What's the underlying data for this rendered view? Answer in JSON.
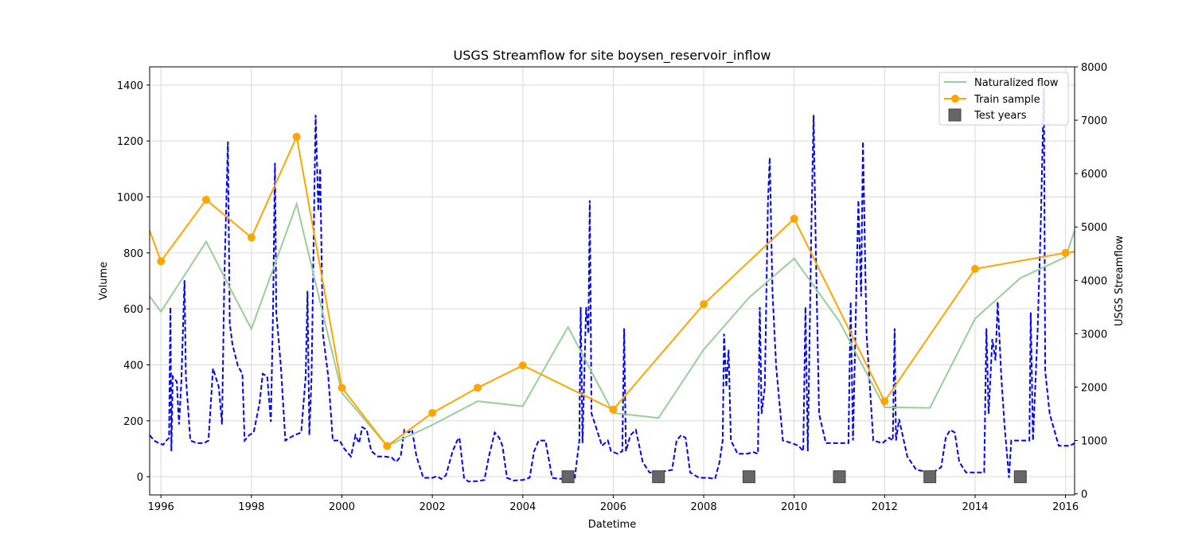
{
  "chart_data": {
    "type": "line",
    "title": "USGS Streamflow for site boysen_reservoir_inflow",
    "xlabel": "Datetime",
    "ylabel_left": "Volume",
    "ylabel_right": "USGS Streamflow",
    "xlim": [
      1995.75,
      2016.2
    ],
    "ylim_left": [
      -65,
      1465
    ],
    "ylim_right": [
      -20,
      8000
    ],
    "x_ticks": [
      1996,
      1998,
      2000,
      2002,
      2004,
      2006,
      2008,
      2010,
      2012,
      2014,
      2016
    ],
    "y_ticks_left": [
      0,
      200,
      400,
      600,
      800,
      1000,
      1200,
      1400
    ],
    "y_ticks_right": [
      0,
      1000,
      2000,
      3000,
      4000,
      5000,
      6000,
      7000,
      8000
    ],
    "grid": true,
    "legend_position": "top-right",
    "legend": {
      "naturalized_label": "Naturalized flow",
      "train_label": "Train sample",
      "test_label": "Test years"
    },
    "colors": {
      "naturalized": "#9acd9a",
      "train": "#ffa500",
      "test": "#666666",
      "usgs": "#0000ff"
    },
    "series": [
      {
        "name": "Naturalized flow",
        "axis": "left",
        "x": [
          1995.75,
          1996,
          1997,
          1998,
          1999,
          2000,
          2001,
          2002,
          2003,
          2004,
          2005,
          2006,
          2007,
          2008,
          2009,
          2010,
          2011,
          2012,
          2013,
          2014,
          2015,
          2016,
          2016.2
        ],
        "y": [
          645,
          590,
          840,
          528,
          975,
          300,
          110,
          185,
          270,
          252,
          535,
          228,
          210,
          455,
          640,
          780,
          555,
          248,
          246,
          565,
          710,
          785,
          880
        ]
      },
      {
        "name": "Train sample",
        "axis": "left",
        "x": [
          1995.75,
          1996,
          1997,
          1998,
          1999,
          2000,
          2001,
          2002,
          2003,
          2004,
          2006,
          2008,
          2010,
          2012,
          2014,
          2016,
          2016.2
        ],
        "y": [
          880,
          770,
          990,
          855,
          1215,
          318,
          110,
          228,
          318,
          398,
          240,
          617,
          922,
          270,
          743,
          800,
          805
        ],
        "markers": [
          [
            1996,
            770
          ],
          [
            1997,
            990
          ],
          [
            1998,
            855
          ],
          [
            1999,
            1215
          ],
          [
            2000,
            318
          ],
          [
            2001,
            110
          ],
          [
            2002,
            228
          ],
          [
            2003,
            318
          ],
          [
            2004,
            398
          ],
          [
            2006,
            240
          ],
          [
            2008,
            617
          ],
          [
            2010,
            922
          ],
          [
            2012,
            270
          ],
          [
            2014,
            743
          ],
          [
            2016,
            800
          ]
        ]
      },
      {
        "name": "Test years",
        "axis": "left",
        "x": [
          2005,
          2007,
          2009,
          2011,
          2013,
          2015
        ],
        "y": [
          0,
          0,
          0,
          0,
          0,
          0
        ]
      },
      {
        "name": "USGS Streamflow",
        "axis": "right",
        "style": "dashed",
        "points": [
          [
            1995.75,
            1100
          ],
          [
            1995.85,
            1000
          ],
          [
            1995.95,
            950
          ],
          [
            1996.05,
            920
          ],
          [
            1996.12,
            1000
          ],
          [
            1996.18,
            1050
          ],
          [
            1996.21,
            3500
          ],
          [
            1996.23,
            800
          ],
          [
            1996.26,
            2200
          ],
          [
            1996.35,
            2100
          ],
          [
            1996.4,
            1300
          ],
          [
            1996.45,
            2100
          ],
          [
            1996.52,
            4000
          ],
          [
            1996.55,
            2200
          ],
          [
            1996.65,
            1000
          ],
          [
            1996.8,
            950
          ],
          [
            1996.95,
            950
          ],
          [
            1997.05,
            1000
          ],
          [
            1997.15,
            2350
          ],
          [
            1997.28,
            2000
          ],
          [
            1997.35,
            1300
          ],
          [
            1997.4,
            4000
          ],
          [
            1997.48,
            6600
          ],
          [
            1997.52,
            3200
          ],
          [
            1997.58,
            2800
          ],
          [
            1997.7,
            2400
          ],
          [
            1997.8,
            2250
          ],
          [
            1997.85,
            1000
          ],
          [
            1997.95,
            1100
          ],
          [
            1998.05,
            1150
          ],
          [
            1998.18,
            1700
          ],
          [
            1998.25,
            2250
          ],
          [
            1998.35,
            2200
          ],
          [
            1998.43,
            1350
          ],
          [
            1998.48,
            3500
          ],
          [
            1998.52,
            6200
          ],
          [
            1998.55,
            3400
          ],
          [
            1998.65,
            2400
          ],
          [
            1998.75,
            1000
          ],
          [
            1998.85,
            1050
          ],
          [
            1998.95,
            1100
          ],
          [
            1999.1,
            1150
          ],
          [
            1999.2,
            2200
          ],
          [
            1999.24,
            3800
          ],
          [
            1999.28,
            1100
          ],
          [
            1999.33,
            2200
          ],
          [
            1999.38,
            5000
          ],
          [
            1999.42,
            7100
          ],
          [
            1999.48,
            5300
          ],
          [
            1999.52,
            6100
          ],
          [
            1999.58,
            3000
          ],
          [
            1999.7,
            2200
          ],
          [
            1999.8,
            1000
          ],
          [
            1999.95,
            1000
          ],
          [
            2000.05,
            850
          ],
          [
            2000.2,
            700
          ],
          [
            2000.3,
            1100
          ],
          [
            2000.38,
            950
          ],
          [
            2000.45,
            1250
          ],
          [
            2000.55,
            1200
          ],
          [
            2000.65,
            800
          ],
          [
            2000.8,
            700
          ],
          [
            2000.95,
            700
          ],
          [
            2001.1,
            680
          ],
          [
            2001.2,
            600
          ],
          [
            2001.3,
            700
          ],
          [
            2001.38,
            1200
          ],
          [
            2001.48,
            1150
          ],
          [
            2001.55,
            1200
          ],
          [
            2001.65,
            700
          ],
          [
            2001.8,
            300
          ],
          [
            2002.0,
            300
          ],
          [
            2002.1,
            330
          ],
          [
            2002.2,
            280
          ],
          [
            2002.3,
            350
          ],
          [
            2002.45,
            800
          ],
          [
            2002.55,
            1000
          ],
          [
            2002.6,
            1050
          ],
          [
            2002.7,
            300
          ],
          [
            2002.8,
            230
          ],
          [
            2003.0,
            240
          ],
          [
            2003.15,
            260
          ],
          [
            2003.25,
            700
          ],
          [
            2003.38,
            1150
          ],
          [
            2003.48,
            1050
          ],
          [
            2003.55,
            900
          ],
          [
            2003.65,
            300
          ],
          [
            2003.8,
            250
          ],
          [
            2004.0,
            260
          ],
          [
            2004.15,
            300
          ],
          [
            2004.25,
            800
          ],
          [
            2004.35,
            1000
          ],
          [
            2004.5,
            1000
          ],
          [
            2004.65,
            300
          ],
          [
            2004.8,
            280
          ],
          [
            2005.0,
            300
          ],
          [
            2005.15,
            300
          ],
          [
            2005.25,
            1000
          ],
          [
            2005.28,
            3500
          ],
          [
            2005.32,
            950
          ],
          [
            2005.4,
            3500
          ],
          [
            2005.45,
            3000
          ],
          [
            2005.48,
            5500
          ],
          [
            2005.52,
            1500
          ],
          [
            2005.6,
            1300
          ],
          [
            2005.75,
            900
          ],
          [
            2005.88,
            1000
          ],
          [
            2005.95,
            800
          ],
          [
            2006.1,
            750
          ],
          [
            2006.2,
            800
          ],
          [
            2006.24,
            3100
          ],
          [
            2006.28,
            800
          ],
          [
            2006.38,
            1100
          ],
          [
            2006.5,
            1200
          ],
          [
            2006.65,
            600
          ],
          [
            2006.8,
            400
          ],
          [
            2006.95,
            400
          ],
          [
            2007.1,
            420
          ],
          [
            2007.3,
            450
          ],
          [
            2007.4,
            1000
          ],
          [
            2007.5,
            1100
          ],
          [
            2007.6,
            1050
          ],
          [
            2007.7,
            400
          ],
          [
            2007.9,
            300
          ],
          [
            2008.1,
            300
          ],
          [
            2008.25,
            280
          ],
          [
            2008.35,
            600
          ],
          [
            2008.42,
            1000
          ],
          [
            2008.45,
            3000
          ],
          [
            2008.5,
            2000
          ],
          [
            2008.55,
            2700
          ],
          [
            2008.6,
            1000
          ],
          [
            2008.75,
            750
          ],
          [
            2008.95,
            750
          ],
          [
            2009.1,
            780
          ],
          [
            2009.2,
            750
          ],
          [
            2009.24,
            3500
          ],
          [
            2009.28,
            1500
          ],
          [
            2009.35,
            2000
          ],
          [
            2009.42,
            5500
          ],
          [
            2009.46,
            6300
          ],
          [
            2009.52,
            3800
          ],
          [
            2009.6,
            2400
          ],
          [
            2009.75,
            1000
          ],
          [
            2009.95,
            950
          ],
          [
            2010.1,
            900
          ],
          [
            2010.2,
            800
          ],
          [
            2010.25,
            3500
          ],
          [
            2010.3,
            800
          ],
          [
            2010.38,
            5000
          ],
          [
            2010.43,
            7100
          ],
          [
            2010.48,
            4500
          ],
          [
            2010.55,
            1500
          ],
          [
            2010.7,
            950
          ],
          [
            2010.9,
            950
          ],
          [
            2011.1,
            950
          ],
          [
            2011.2,
            950
          ],
          [
            2011.25,
            3600
          ],
          [
            2011.3,
            1000
          ],
          [
            2011.38,
            4000
          ],
          [
            2011.42,
            5500
          ],
          [
            2011.48,
            3700
          ],
          [
            2011.52,
            6600
          ],
          [
            2011.6,
            3000
          ],
          [
            2011.75,
            1000
          ],
          [
            2011.95,
            950
          ],
          [
            2012.1,
            1050
          ],
          [
            2012.18,
            1000
          ],
          [
            2012.22,
            3100
          ],
          [
            2012.25,
            1000
          ],
          [
            2012.32,
            1400
          ],
          [
            2012.5,
            700
          ],
          [
            2012.7,
            450
          ],
          [
            2012.9,
            420
          ],
          [
            2013.1,
            420
          ],
          [
            2013.25,
            500
          ],
          [
            2013.35,
            1050
          ],
          [
            2013.45,
            1200
          ],
          [
            2013.55,
            1150
          ],
          [
            2013.65,
            600
          ],
          [
            2013.8,
            400
          ],
          [
            2014.0,
            400
          ],
          [
            2014.2,
            400
          ],
          [
            2014.25,
            3100
          ],
          [
            2014.3,
            1500
          ],
          [
            2014.38,
            2900
          ],
          [
            2014.45,
            2500
          ],
          [
            2014.5,
            3600
          ],
          [
            2014.58,
            2200
          ],
          [
            2014.65,
            1300
          ],
          [
            2014.75,
            300
          ],
          [
            2014.8,
            1000
          ],
          [
            2014.95,
            1000
          ],
          [
            2015.1,
            1000
          ],
          [
            2015.2,
            1000
          ],
          [
            2015.23,
            3400
          ],
          [
            2015.28,
            1000
          ],
          [
            2015.38,
            3000
          ],
          [
            2015.45,
            5000
          ],
          [
            2015.52,
            7600
          ],
          [
            2015.55,
            2300
          ],
          [
            2015.65,
            1500
          ],
          [
            2015.75,
            1200
          ],
          [
            2015.85,
            900
          ],
          [
            2015.95,
            900
          ],
          [
            2016.1,
            900
          ],
          [
            2016.2,
            950
          ]
        ]
      }
    ]
  }
}
